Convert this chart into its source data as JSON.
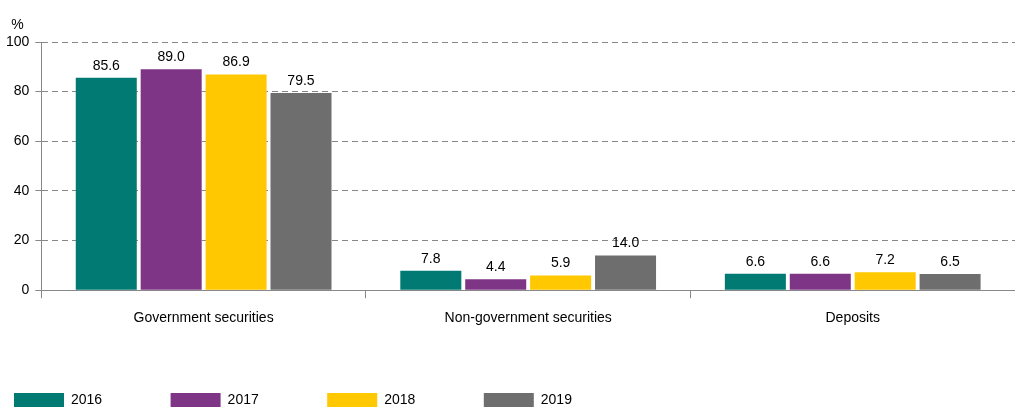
{
  "chart_data": {
    "type": "bar",
    "ylabel": "%",
    "categories": [
      "Government securities",
      "Non-government securities",
      "Deposits"
    ],
    "series": [
      {
        "name": "2016",
        "color": "#007a73",
        "values": [
          85.6,
          7.8,
          6.6
        ],
        "value_labels": [
          "85.6",
          "7.8",
          "6.6"
        ]
      },
      {
        "name": "2017",
        "color": "#7f3586",
        "values": [
          89.0,
          4.4,
          6.6
        ],
        "value_labels": [
          "89.0",
          "4.4",
          "6.6"
        ]
      },
      {
        "name": "2018",
        "color": "#ffc800",
        "values": [
          86.9,
          5.9,
          7.2
        ],
        "value_labels": [
          "86.9",
          "5.9",
          "7.2"
        ]
      },
      {
        "name": "2019",
        "color": "#6e6e6e",
        "values": [
          79.5,
          14.0,
          6.5
        ],
        "value_labels": [
          "79.5",
          "14.0",
          "6.5"
        ]
      }
    ],
    "ylim": [
      0,
      100
    ],
    "yticks": [
      0,
      20,
      40,
      60,
      80,
      100
    ],
    "grid": "y",
    "legend": "bottom left"
  }
}
